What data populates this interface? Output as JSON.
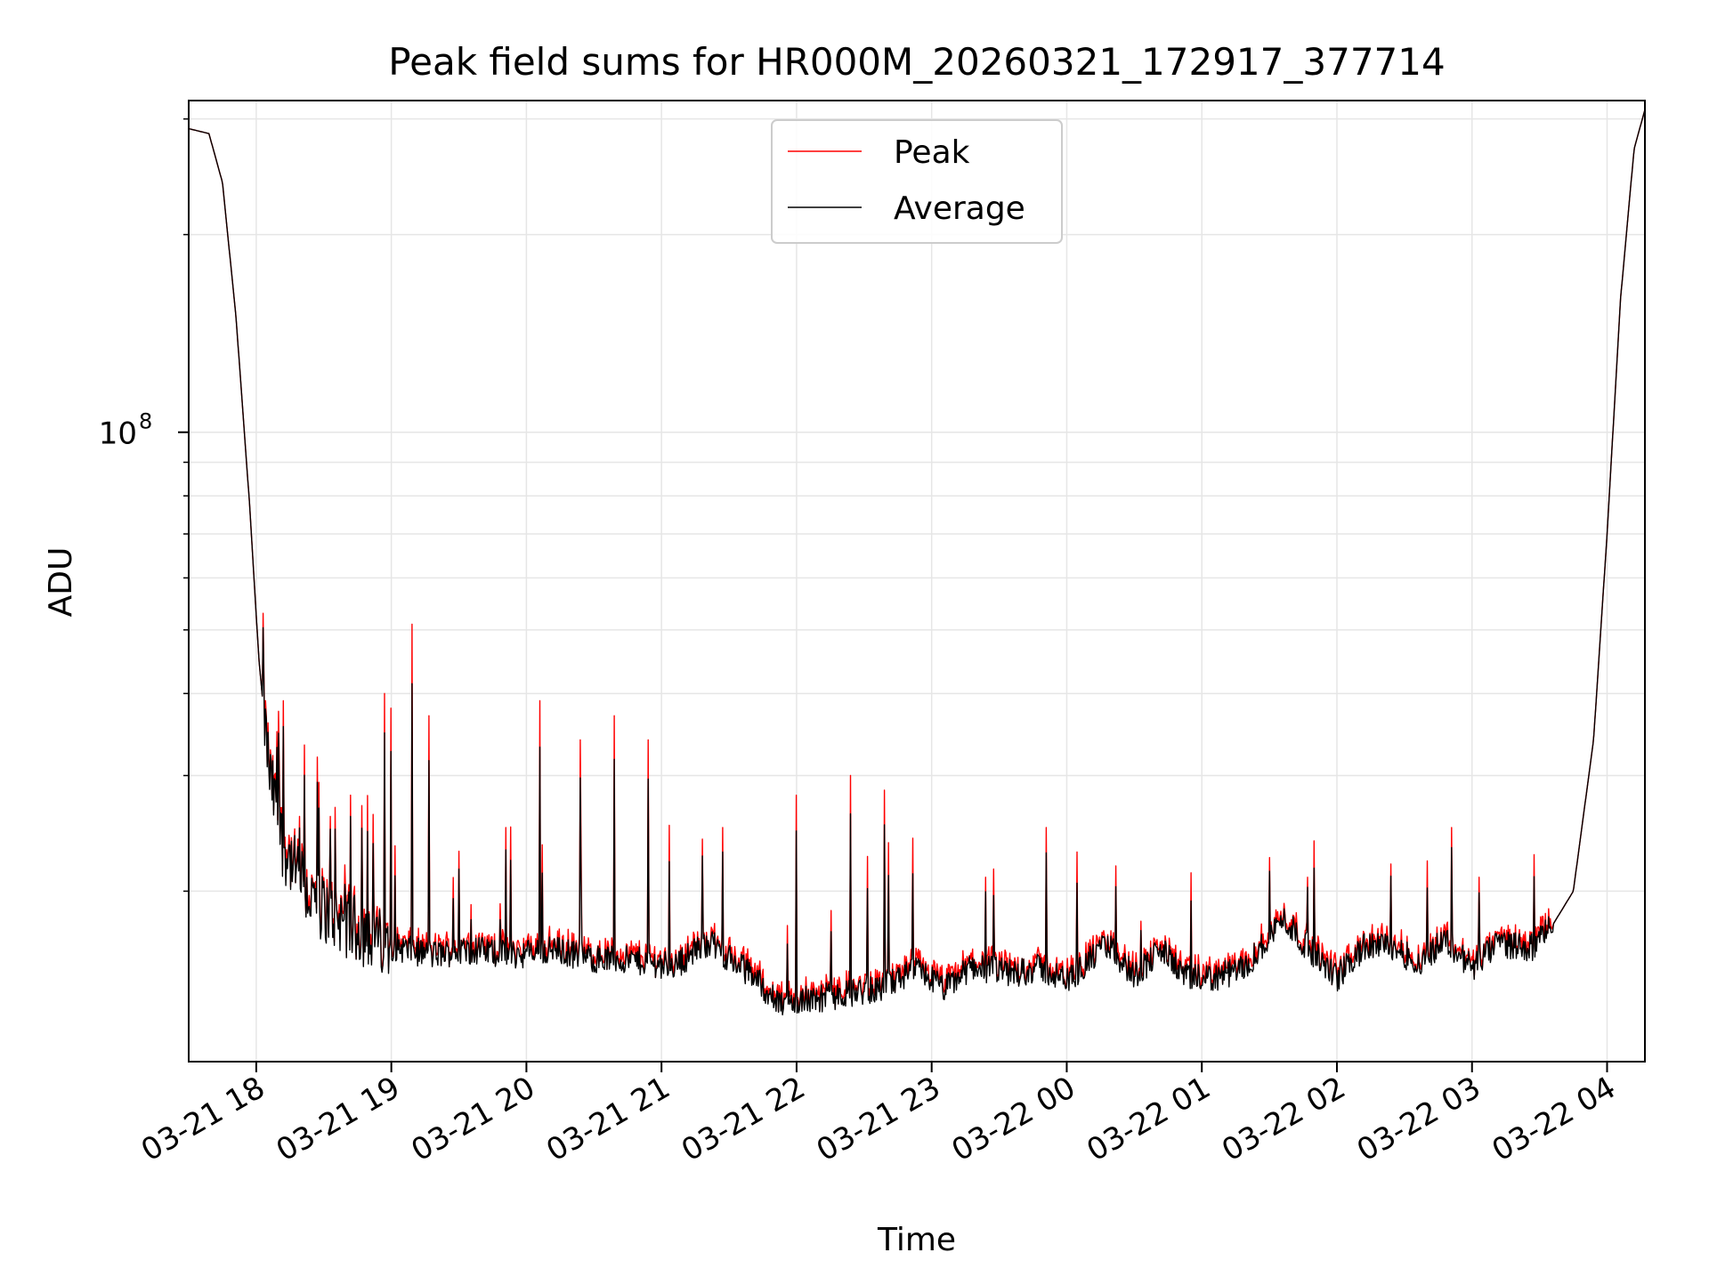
{
  "chart_data": {
    "type": "line",
    "title": "Peak field sums for HR000M_20260321_172917_377714",
    "xlabel": "Time",
    "ylabel": "ADU",
    "yscale": "log",
    "y_tick_label": {
      "base": "10",
      "exponent": "8",
      "value": 100000000
    },
    "x_ticks": [
      "03-21 18",
      "03-21 19",
      "03-21 20",
      "03-21 21",
      "03-21 22",
      "03-21 23",
      "03-22 00",
      "03-22 01",
      "03-22 02",
      "03-22 03",
      "03-22 04"
    ],
    "x_range_hours": [
      -0.5,
      10.28
    ],
    "ylim": [
      11000000,
      320000000
    ],
    "grid": true,
    "legend": {
      "position": "top-center",
      "entries": [
        "Peak",
        "Average"
      ]
    },
    "series": [
      {
        "name": "Peak",
        "color": "#ff0000"
      },
      {
        "name": "Average",
        "color": "#000000"
      }
    ],
    "baseline_points": [
      [
        -0.5,
        290000000
      ],
      [
        -0.35,
        285000000
      ],
      [
        -0.25,
        240000000
      ],
      [
        -0.15,
        150000000
      ],
      [
        -0.05,
        78000000
      ],
      [
        0.02,
        45000000
      ],
      [
        0.1,
        30000000
      ],
      [
        0.2,
        23500000
      ],
      [
        0.4,
        19500000
      ],
      [
        0.7,
        17800000
      ],
      [
        1.0,
        16500000
      ],
      [
        1.3,
        16000000
      ],
      [
        1.6,
        16300000
      ],
      [
        1.9,
        16000000
      ],
      [
        2.2,
        16300000
      ],
      [
        2.5,
        15800000
      ],
      [
        2.8,
        15700000
      ],
      [
        3.1,
        15400000
      ],
      [
        3.35,
        16800000
      ],
      [
        3.5,
        15800000
      ],
      [
        3.7,
        14800000
      ],
      [
        3.85,
        13500000
      ],
      [
        4.0,
        13600000
      ],
      [
        4.3,
        13900000
      ],
      [
        4.6,
        14200000
      ],
      [
        4.9,
        15200000
      ],
      [
        5.1,
        14200000
      ],
      [
        5.3,
        15400000
      ],
      [
        5.6,
        15000000
      ],
      [
        5.8,
        15300000
      ],
      [
        6.0,
        14600000
      ],
      [
        6.3,
        16600000
      ],
      [
        6.5,
        14900000
      ],
      [
        6.7,
        16300000
      ],
      [
        6.9,
        14700000
      ],
      [
        7.1,
        14800000
      ],
      [
        7.3,
        15200000
      ],
      [
        7.5,
        17000000
      ],
      [
        7.6,
        18200000
      ],
      [
        7.8,
        16300000
      ],
      [
        8.0,
        14800000
      ],
      [
        8.2,
        16400000
      ],
      [
        8.4,
        16600000
      ],
      [
        8.6,
        15500000
      ],
      [
        8.8,
        16900000
      ],
      [
        9.0,
        15300000
      ],
      [
        9.2,
        16700000
      ],
      [
        9.45,
        16400000
      ],
      [
        9.6,
        17800000
      ],
      [
        9.75,
        20000000
      ],
      [
        9.9,
        34000000
      ],
      [
        10.0,
        70000000
      ],
      [
        10.1,
        160000000
      ],
      [
        10.2,
        270000000
      ],
      [
        10.28,
        310000000
      ]
    ],
    "spikes": [
      [
        0.05,
        53000000
      ],
      [
        0.15,
        35000000
      ],
      [
        0.2,
        39000000
      ],
      [
        0.32,
        26000000
      ],
      [
        0.45,
        32000000
      ],
      [
        0.55,
        26000000
      ],
      [
        0.7,
        28000000
      ],
      [
        0.78,
        27000000
      ],
      [
        0.95,
        40000000
      ],
      [
        1.0,
        38000000
      ],
      [
        1.15,
        51000000
      ],
      [
        1.28,
        37000000
      ],
      [
        1.5,
        23000000
      ],
      [
        1.85,
        25000000
      ],
      [
        2.1,
        39000000
      ],
      [
        2.4,
        34000000
      ],
      [
        2.65,
        37000000
      ],
      [
        2.9,
        34000000
      ],
      [
        3.3,
        24000000
      ],
      [
        3.45,
        25000000
      ],
      [
        4.0,
        28000000
      ],
      [
        4.4,
        30000000
      ],
      [
        4.65,
        28500000
      ],
      [
        5.4,
        21000000
      ],
      [
        5.85,
        25000000
      ],
      [
        6.55,
        18000000
      ],
      [
        7.5,
        22500000
      ],
      [
        7.78,
        21000000
      ],
      [
        8.4,
        22000000
      ],
      [
        8.85,
        25000000
      ],
      [
        9.05,
        21000000
      ]
    ]
  }
}
